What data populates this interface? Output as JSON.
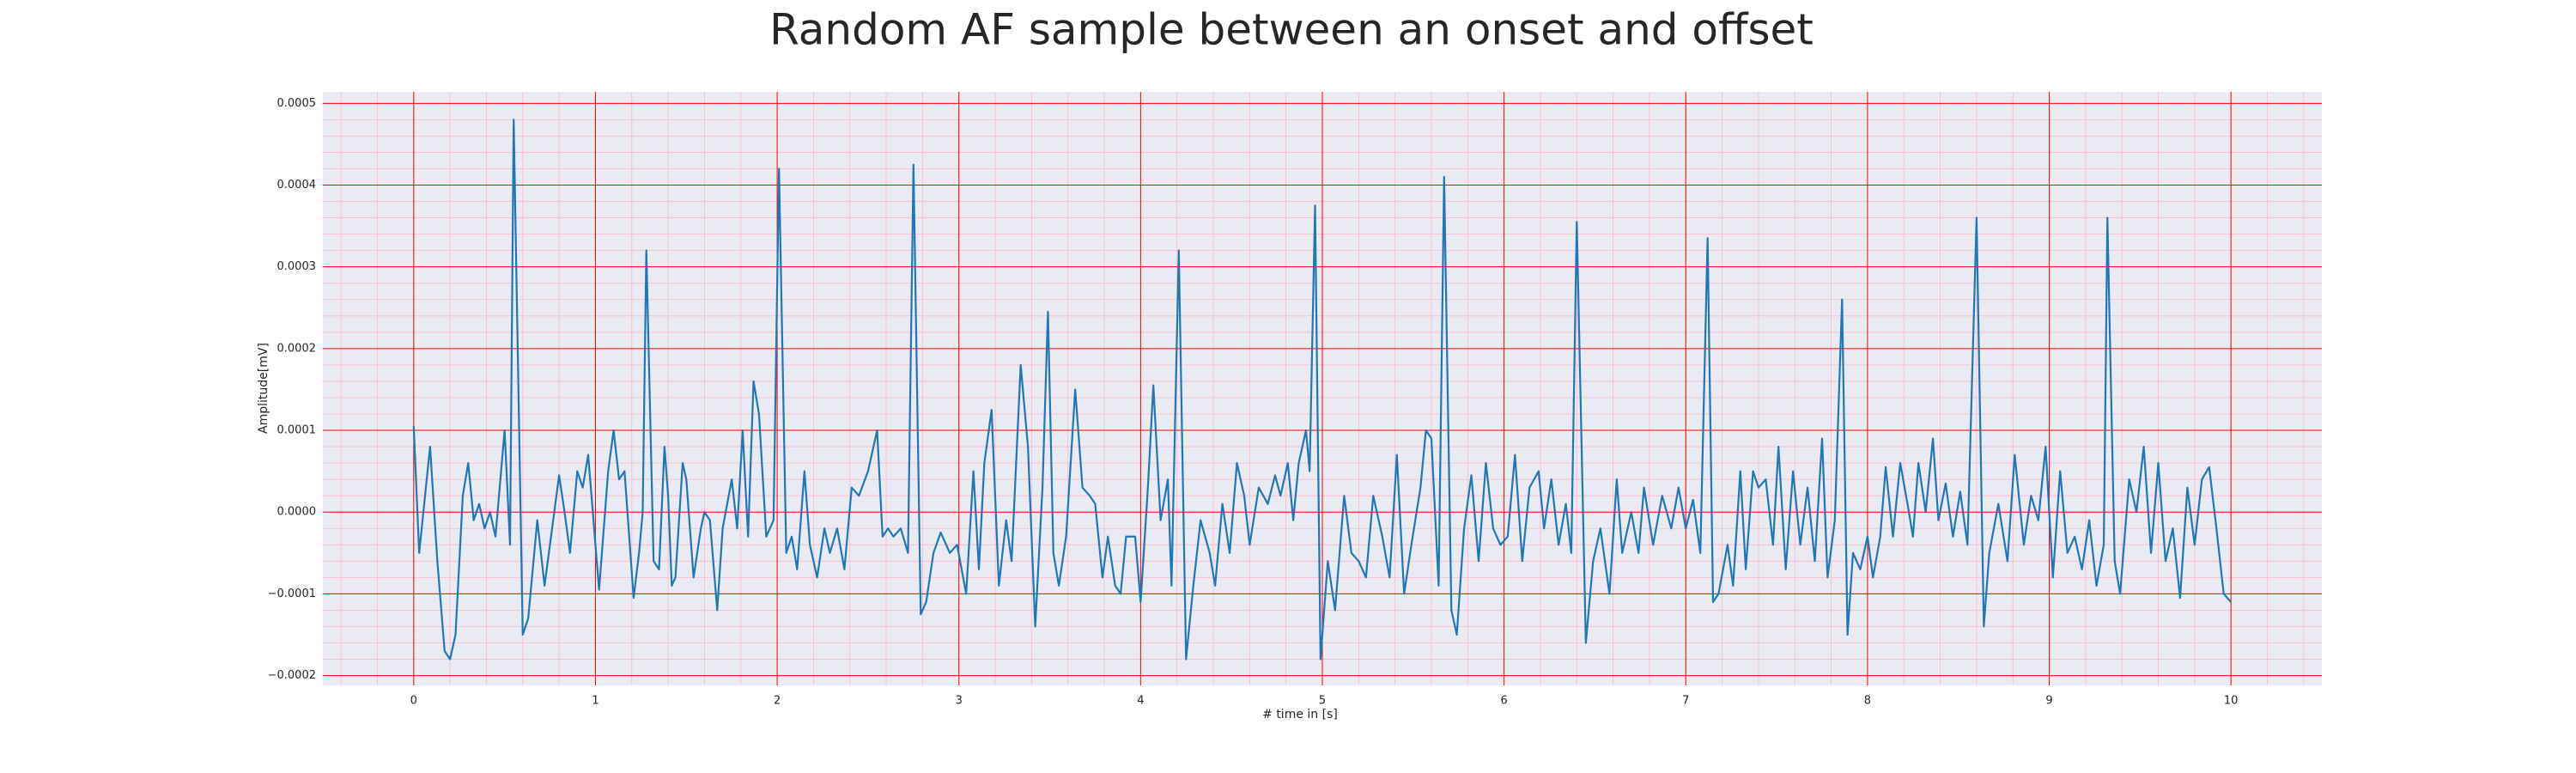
{
  "chart_data": {
    "type": "line",
    "title": "Random AF sample between an onset and offset",
    "x_label": "# time in [s]",
    "y_label": "Amplitude[mV]",
    "xlim": [
      -0.5,
      10.5
    ],
    "ylim": [
      -0.000212,
      0.000514
    ],
    "xticks": [
      0,
      1,
      2,
      3,
      4,
      5,
      6,
      7,
      8,
      9,
      10
    ],
    "yticks": [
      {
        "value": -0.0002,
        "label": "−0.0002"
      },
      {
        "value": -0.0001,
        "label": "−0.0001"
      },
      {
        "value": 0,
        "label": "0.0000"
      },
      {
        "value": 0.0001,
        "label": "0.0001"
      },
      {
        "value": 0.0002,
        "label": "0.0002"
      },
      {
        "value": 0.0003,
        "label": "0.0003"
      },
      {
        "value": 0.0004,
        "label": "0.0004"
      },
      {
        "value": 0.0005,
        "label": "0.0005"
      }
    ],
    "grid": true,
    "minor_grid": true,
    "grid_color": "#ff0000",
    "minor_grid_color": "#ffb6c8",
    "background": "#eaeaf2",
    "color": "#1f77b4",
    "x": [
      0,
      0.03,
      0.09,
      0.13,
      0.17,
      0.2,
      0.23,
      0.27,
      0.3,
      0.33,
      0.36,
      0.39,
      0.42,
      0.45,
      0.5,
      0.53,
      0.55,
      0.6,
      0.63,
      0.68,
      0.72,
      0.8,
      0.83,
      0.86,
      0.9,
      0.93,
      0.96,
      1.02,
      1.07,
      1.1,
      1.13,
      1.16,
      1.21,
      1.24,
      1.26,
      1.28,
      1.32,
      1.35,
      1.38,
      1.4,
      1.42,
      1.44,
      1.48,
      1.5,
      1.54,
      1.58,
      1.6,
      1.63,
      1.67,
      1.7,
      1.75,
      1.78,
      1.81,
      1.84,
      1.87,
      1.9,
      1.94,
      1.98,
      2.01,
      2.05,
      2.08,
      2.11,
      2.15,
      2.18,
      2.22,
      2.26,
      2.29,
      2.33,
      2.37,
      2.41,
      2.45,
      2.5,
      2.55,
      2.58,
      2.61,
      2.64,
      2.68,
      2.72,
      2.75,
      2.79,
      2.82,
      2.86,
      2.9,
      2.95,
      2.99,
      3.04,
      3.08,
      3.11,
      3.14,
      3.18,
      3.22,
      3.26,
      3.29,
      3.34,
      3.38,
      3.42,
      3.46,
      3.49,
      3.52,
      3.55,
      3.59,
      3.64,
      3.68,
      3.72,
      3.75,
      3.79,
      3.82,
      3.86,
      3.89,
      3.92,
      3.97,
      4.0,
      4.04,
      4.07,
      4.11,
      4.15,
      4.17,
      4.21,
      4.25,
      4.29,
      4.33,
      4.38,
      4.41,
      4.45,
      4.49,
      4.53,
      4.57,
      4.6,
      4.65,
      4.7,
      4.74,
      4.77,
      4.81,
      4.84,
      4.87,
      4.91,
      4.93,
      4.96,
      4.99,
      5.03,
      5.07,
      5.12,
      5.16,
      5.2,
      5.24,
      5.28,
      5.33,
      5.37,
      5.41,
      5.45,
      5.49,
      5.54,
      5.57,
      5.6,
      5.64,
      5.67,
      5.71,
      5.74,
      5.78,
      5.82,
      5.86,
      5.9,
      5.94,
      5.98,
      6.02,
      6.06,
      6.1,
      6.14,
      6.19,
      6.22,
      6.26,
      6.3,
      6.34,
      6.37,
      6.4,
      6.45,
      6.49,
      6.53,
      6.58,
      6.62,
      6.65,
      6.7,
      6.74,
      6.77,
      6.82,
      6.87,
      6.92,
      6.96,
      7.0,
      7.04,
      7.08,
      7.12,
      7.15,
      7.18,
      7.23,
      7.26,
      7.3,
      7.33,
      7.37,
      7.4,
      7.44,
      7.48,
      7.51,
      7.55,
      7.59,
      7.63,
      7.67,
      7.71,
      7.75,
      7.78,
      7.82,
      7.86,
      7.89,
      7.92,
      7.96,
      8.0,
      8.03,
      8.07,
      8.1,
      8.14,
      8.18,
      8.22,
      8.25,
      8.28,
      8.32,
      8.36,
      8.39,
      8.43,
      8.47,
      8.51,
      8.55,
      8.6,
      8.64,
      8.67,
      8.72,
      8.77,
      8.81,
      8.86,
      8.9,
      8.94,
      8.98,
      9.02,
      9.06,
      9.1,
      9.14,
      9.18,
      9.22,
      9.26,
      9.3,
      9.32,
      9.36,
      9.39,
      9.44,
      9.48,
      9.52,
      9.56,
      9.6,
      9.64,
      9.68,
      9.72,
      9.76,
      9.8,
      9.84,
      9.88,
      9.92,
      9.96,
      10.0
    ],
    "values": [
      0.000105,
      -5e-05,
      8e-05,
      -6e-05,
      -0.00017,
      -0.00018,
      -0.00015,
      2e-05,
      6e-05,
      -1e-05,
      1e-05,
      -2e-05,
      0,
      -3e-05,
      0.0001,
      -4e-05,
      0.00048,
      -0.00015,
      -0.00013,
      -1e-05,
      -9e-05,
      4.5e-05,
      0,
      -5e-05,
      5e-05,
      3e-05,
      7e-05,
      -9.5e-05,
      5e-05,
      0.0001,
      4e-05,
      5e-05,
      -0.000105,
      -5e-05,
      0,
      0.00032,
      -6e-05,
      -7e-05,
      8e-05,
      2e-05,
      -9e-05,
      -8e-05,
      6e-05,
      4e-05,
      -8e-05,
      -2e-05,
      0,
      -1e-05,
      -0.00012,
      -2e-05,
      4e-05,
      -2e-05,
      0.0001,
      -3e-05,
      0.00016,
      0.00012,
      -3e-05,
      -1e-05,
      0.00042,
      -5e-05,
      -3e-05,
      -7e-05,
      5e-05,
      -4e-05,
      -8e-05,
      -2e-05,
      -5e-05,
      -2e-05,
      -7e-05,
      3e-05,
      2e-05,
      5e-05,
      0.0001,
      -3e-05,
      -2e-05,
      -3e-05,
      -2e-05,
      -5e-05,
      0.000425,
      -0.000125,
      -0.00011,
      -5e-05,
      -2.5e-05,
      -5e-05,
      -4e-05,
      -0.0001,
      5e-05,
      -7e-05,
      6e-05,
      0.000125,
      -9e-05,
      -1e-05,
      -6e-05,
      0.00018,
      8e-05,
      -0.00014,
      3e-05,
      0.000245,
      -5e-05,
      -9e-05,
      -3e-05,
      0.00015,
      3e-05,
      2e-05,
      1e-05,
      -8e-05,
      -3e-05,
      -9e-05,
      -0.0001,
      -3e-05,
      -3e-05,
      -0.00011,
      3e-05,
      0.000155,
      -1e-05,
      4e-05,
      -9e-05,
      0.00032,
      -0.00018,
      -9e-05,
      -1e-05,
      -5e-05,
      -9e-05,
      1e-05,
      -5e-05,
      6e-05,
      2e-05,
      -4e-05,
      3e-05,
      1e-05,
      4.5e-05,
      2e-05,
      6e-05,
      -1e-05,
      6e-05,
      0.0001,
      5e-05,
      0.000375,
      -0.00018,
      -6e-05,
      -0.00012,
      2e-05,
      -5e-05,
      -6e-05,
      -8e-05,
      2e-05,
      -3e-05,
      -8e-05,
      7e-05,
      -0.0001,
      -4e-05,
      3e-05,
      0.0001,
      9e-05,
      -9e-05,
      0.00041,
      -0.00012,
      -0.00015,
      -2e-05,
      4.5e-05,
      -6e-05,
      6e-05,
      -2e-05,
      -4e-05,
      -3e-05,
      7e-05,
      -6e-05,
      3e-05,
      5e-05,
      -2e-05,
      4e-05,
      -4e-05,
      1e-05,
      -5e-05,
      0.000355,
      -0.00016,
      -6e-05,
      -2e-05,
      -0.0001,
      4e-05,
      -5e-05,
      0,
      -5e-05,
      3e-05,
      -4e-05,
      2e-05,
      -2e-05,
      3e-05,
      -2e-05,
      1.5e-05,
      -5e-05,
      0.000335,
      -0.00011,
      -0.0001,
      -4e-05,
      -9e-05,
      5e-05,
      -7e-05,
      5e-05,
      3e-05,
      4e-05,
      -4e-05,
      8e-05,
      -7e-05,
      5e-05,
      -4e-05,
      3e-05,
      -6e-05,
      9e-05,
      -8e-05,
      -1e-05,
      0.00026,
      -0.00015,
      -5e-05,
      -7e-05,
      -3e-05,
      -8e-05,
      -3e-05,
      5.5e-05,
      -3e-05,
      6e-05,
      1e-05,
      -3e-05,
      6e-05,
      0,
      9e-05,
      -1e-05,
      3.5e-05,
      -3e-05,
      2.5e-05,
      -4e-05,
      0.00036,
      -0.00014,
      -5e-05,
      1e-05,
      -6e-05,
      7e-05,
      -4e-05,
      2e-05,
      -1e-05,
      8e-05,
      -8e-05,
      5e-05,
      -5e-05,
      -3e-05,
      -7e-05,
      -1e-05,
      -9e-05,
      -4e-05,
      0.00036,
      -6e-05,
      -0.0001,
      4e-05,
      0,
      8e-05,
      -5e-05,
      6e-05,
      -6e-05,
      -2e-05,
      -0.000105,
      3e-05,
      -4e-05,
      4e-05,
      5.5e-05,
      -2e-05,
      -0.0001,
      -0.00011
    ]
  }
}
